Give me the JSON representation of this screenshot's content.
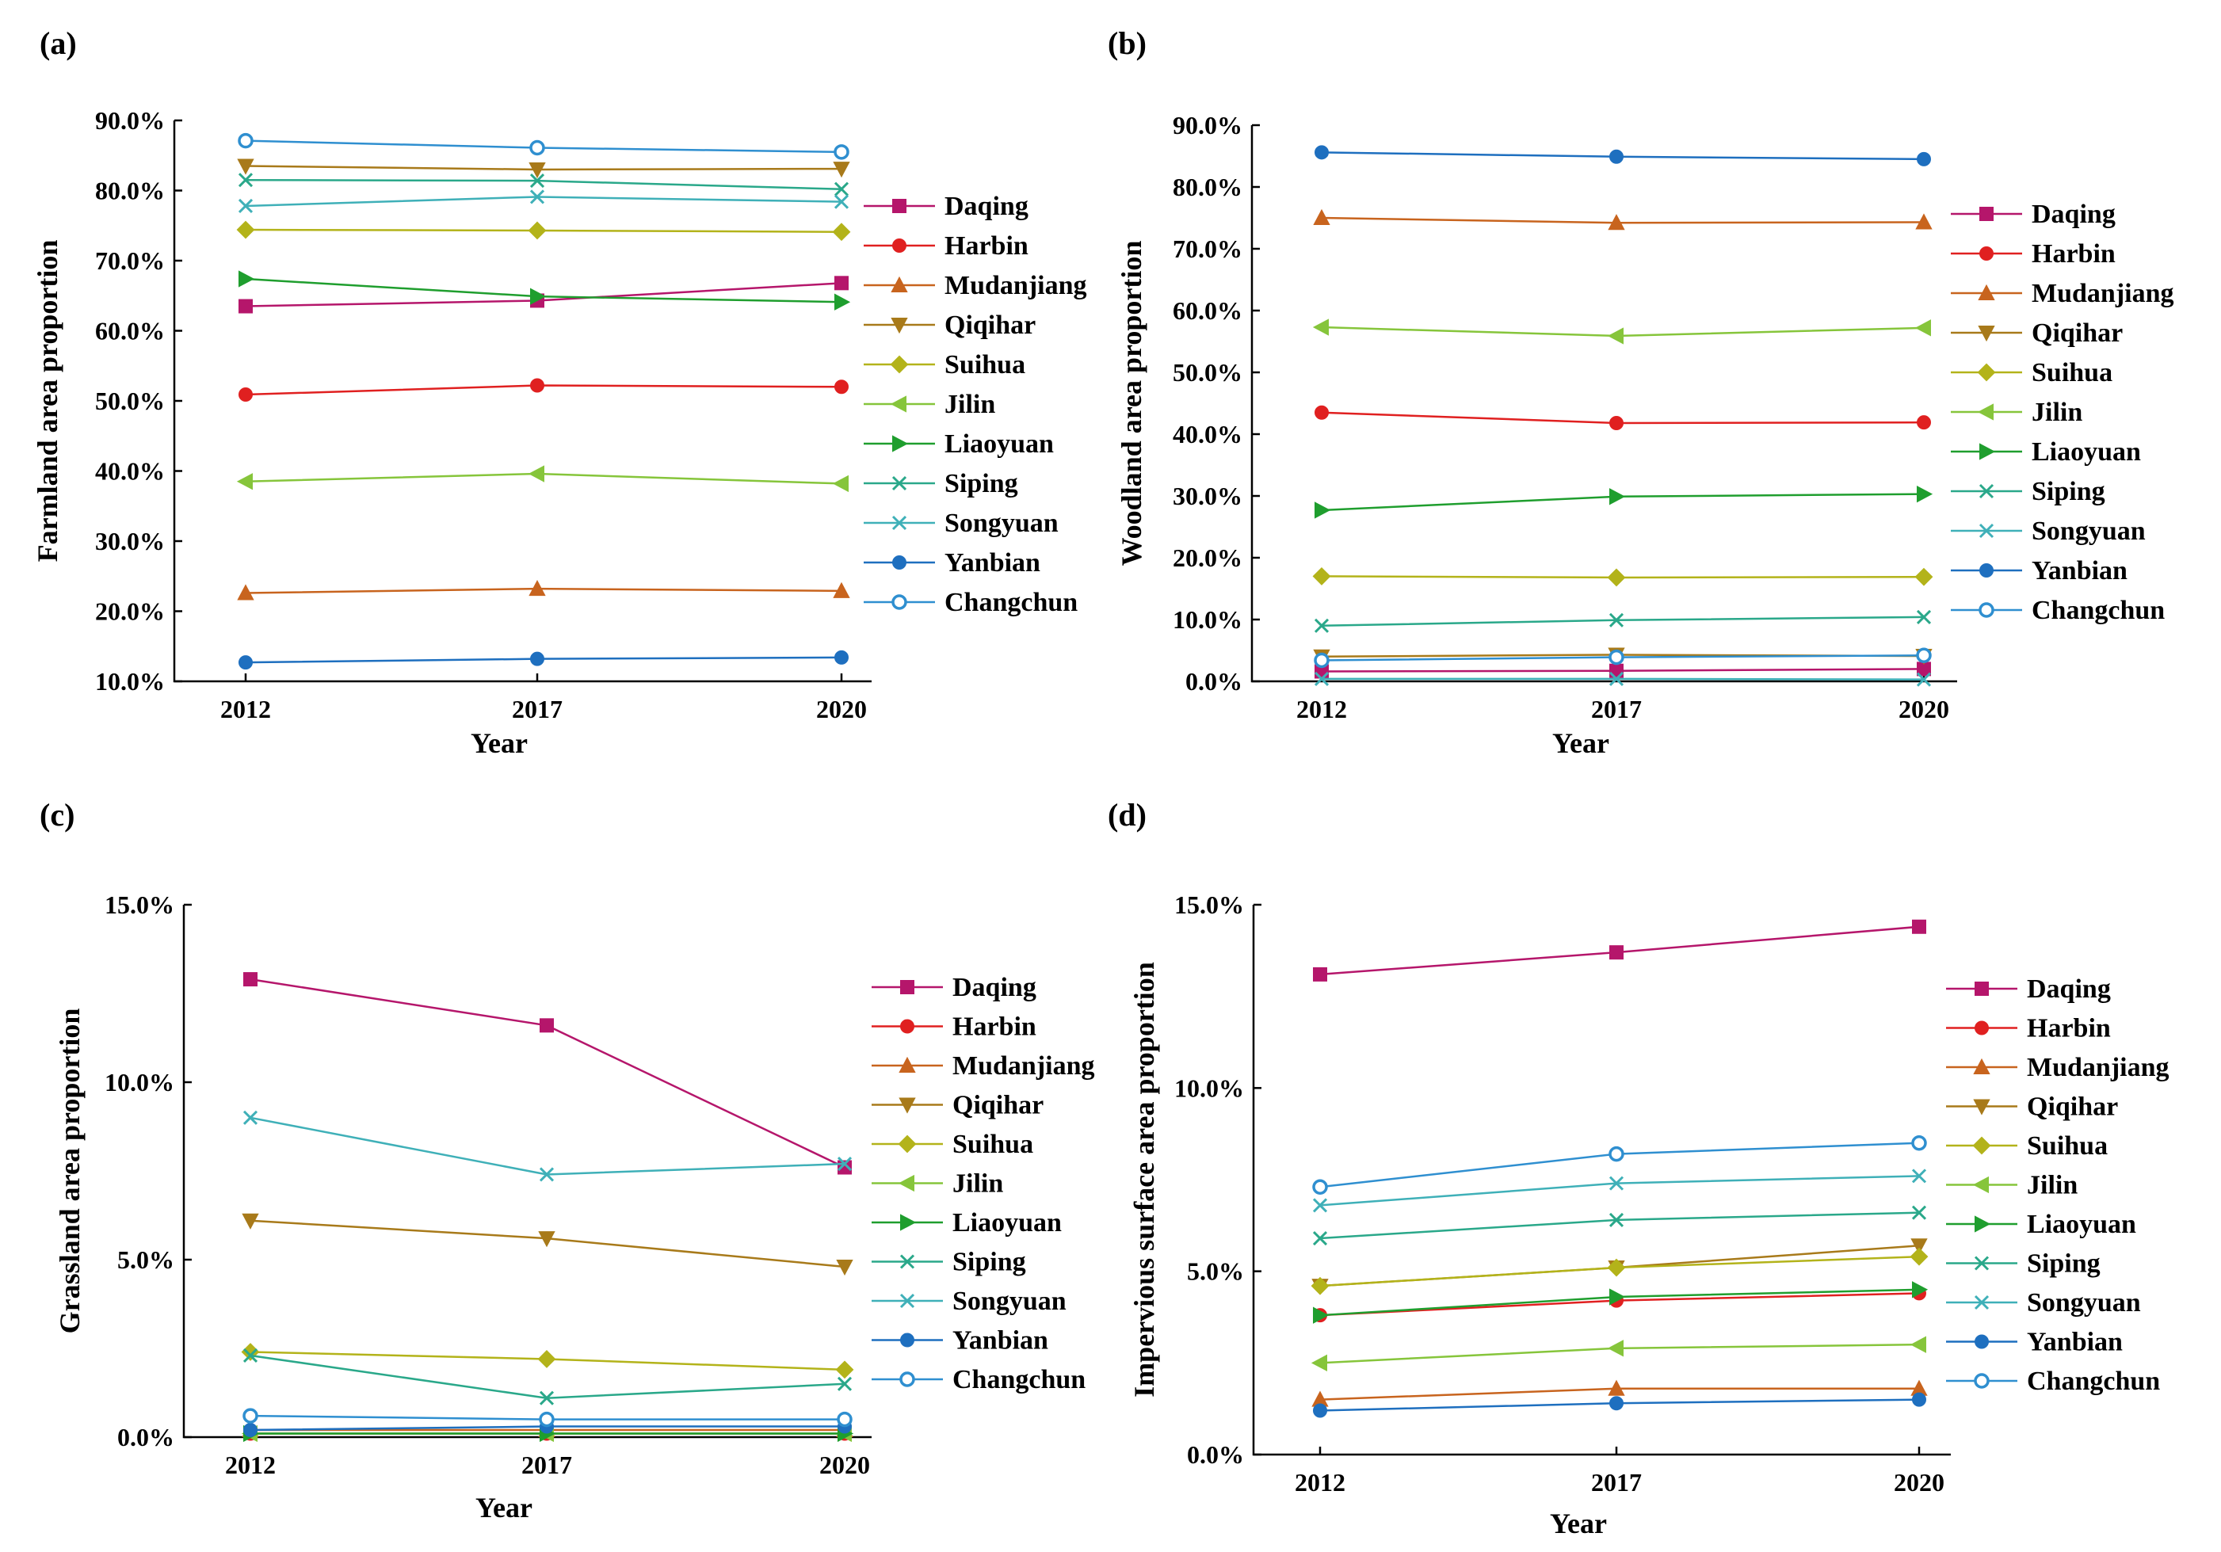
{
  "colors": {
    "Daqing": "#b5166b",
    "Harbin": "#e02020",
    "Mudanjiang": "#c8641e",
    "Qiqihar": "#a87a1a",
    "Suihua": "#b3b31a",
    "Jilin": "#86c53b",
    "Liaoyuan": "#1f9e2e",
    "Siping": "#2aa88a",
    "Songyuan": "#3fb0b8",
    "Yanbian": "#1e6fbf",
    "Changchun": "#2f8fd0"
  },
  "markers": {
    "Daqing": "square",
    "Harbin": "circle",
    "Mudanjiang": "triangle-up",
    "Qiqihar": "triangle-down",
    "Suihua": "diamond",
    "Jilin": "triangle-left",
    "Liaoyuan": "triangle-right",
    "Siping": "x",
    "Songyuan": "x",
    "Yanbian": "circle",
    "Changchun": "circle-hollow"
  },
  "chart_data": [
    {
      "panel": "(a)",
      "type": "line",
      "xlabel": "Year",
      "ylabel": "Farmland area proportion",
      "categories": [
        "2012",
        "2017",
        "2020"
      ],
      "ylim": [
        10,
        90
      ],
      "yticks": [
        10,
        20,
        30,
        40,
        50,
        60,
        70,
        80,
        90
      ],
      "ytick_labels": [
        "10.0%",
        "20.0%",
        "30.0%",
        "40.0%",
        "50.0%",
        "60.0%",
        "70.0%",
        "80.0%",
        "90.0%"
      ],
      "legend_position": "right",
      "series": [
        {
          "name": "Daqing",
          "values": [
            63.5,
            64.3,
            66.8
          ]
        },
        {
          "name": "Harbin",
          "values": [
            50.9,
            52.2,
            52.0
          ]
        },
        {
          "name": "Mudanjiang",
          "values": [
            22.6,
            23.2,
            22.9
          ]
        },
        {
          "name": "Qiqihar",
          "values": [
            83.5,
            83.0,
            83.1
          ]
        },
        {
          "name": "Suihua",
          "values": [
            74.4,
            74.3,
            74.1
          ]
        },
        {
          "name": "Jilin",
          "values": [
            38.5,
            39.6,
            38.2
          ]
        },
        {
          "name": "Liaoyuan",
          "values": [
            67.4,
            64.9,
            64.1
          ]
        },
        {
          "name": "Siping",
          "values": [
            81.5,
            81.4,
            80.2
          ]
        },
        {
          "name": "Songyuan",
          "values": [
            77.8,
            79.1,
            78.4
          ]
        },
        {
          "name": "Yanbian",
          "values": [
            12.7,
            13.2,
            13.4
          ]
        },
        {
          "name": "Changchun",
          "values": [
            87.1,
            86.1,
            85.5
          ]
        }
      ]
    },
    {
      "panel": "(b)",
      "type": "line",
      "xlabel": "Year",
      "ylabel": "Woodland area proportion",
      "categories": [
        "2012",
        "2017",
        "2020"
      ],
      "ylim": [
        0,
        90
      ],
      "yticks": [
        0,
        10,
        20,
        30,
        40,
        50,
        60,
        70,
        80,
        90
      ],
      "ytick_labels": [
        "0.0%",
        "10.0%",
        "20.0%",
        "30.0%",
        "40.0%",
        "50.0%",
        "60.0%",
        "70.0%",
        "80.0%",
        "90.0%"
      ],
      "legend_position": "right",
      "series": [
        {
          "name": "Daqing",
          "values": [
            1.6,
            1.7,
            2.0
          ]
        },
        {
          "name": "Harbin",
          "values": [
            43.5,
            41.8,
            41.9
          ]
        },
        {
          "name": "Mudanjiang",
          "values": [
            75.0,
            74.2,
            74.3
          ]
        },
        {
          "name": "Qiqihar",
          "values": [
            4.0,
            4.3,
            4.1
          ]
        },
        {
          "name": "Suihua",
          "values": [
            17.0,
            16.8,
            16.9
          ]
        },
        {
          "name": "Jilin",
          "values": [
            57.3,
            55.9,
            57.2
          ]
        },
        {
          "name": "Liaoyuan",
          "values": [
            27.7,
            29.9,
            30.3
          ]
        },
        {
          "name": "Siping",
          "values": [
            9.0,
            9.9,
            10.4
          ]
        },
        {
          "name": "Songyuan",
          "values": [
            0.4,
            0.4,
            0.3
          ]
        },
        {
          "name": "Yanbian",
          "values": [
            85.6,
            84.9,
            84.5
          ]
        },
        {
          "name": "Changchun",
          "values": [
            3.4,
            3.9,
            4.2
          ]
        }
      ]
    },
    {
      "panel": "(c)",
      "type": "line",
      "xlabel": "Year",
      "ylabel": "Grassland area proportion",
      "categories": [
        "2012",
        "2017",
        "2020"
      ],
      "ylim": [
        0,
        15
      ],
      "yticks": [
        0,
        5,
        10,
        15
      ],
      "ytick_labels": [
        "0.0%",
        "5.0%",
        "10.0%",
        "15.0%"
      ],
      "legend_position": "right",
      "series": [
        {
          "name": "Daqing",
          "values": [
            12.9,
            11.6,
            7.6
          ]
        },
        {
          "name": "Harbin",
          "values": [
            0.1,
            0.1,
            0.1
          ]
        },
        {
          "name": "Mudanjiang",
          "values": [
            0.2,
            0.2,
            0.2
          ]
        },
        {
          "name": "Qiqihar",
          "values": [
            6.1,
            5.6,
            4.8
          ]
        },
        {
          "name": "Suihua",
          "values": [
            2.4,
            2.2,
            1.9
          ]
        },
        {
          "name": "Jilin",
          "values": [
            0.1,
            0.1,
            0.1
          ]
        },
        {
          "name": "Liaoyuan",
          "values": [
            0.1,
            0.1,
            0.1
          ]
        },
        {
          "name": "Siping",
          "values": [
            2.3,
            1.1,
            1.5
          ]
        },
        {
          "name": "Songyuan",
          "values": [
            9.0,
            7.4,
            7.7
          ]
        },
        {
          "name": "Yanbian",
          "values": [
            0.2,
            0.3,
            0.3
          ]
        },
        {
          "name": "Changchun",
          "values": [
            0.6,
            0.5,
            0.5
          ]
        }
      ]
    },
    {
      "panel": "(d)",
      "type": "line",
      "xlabel": "Year",
      "ylabel": "Impervious surface area proportion",
      "categories": [
        "2012",
        "2017",
        "2020"
      ],
      "ylim": [
        0,
        15
      ],
      "yticks": [
        0,
        5,
        10,
        15
      ],
      "ytick_labels": [
        "0.0%",
        "5.0%",
        "10.0%",
        "15.0%"
      ],
      "legend_position": "right",
      "series": [
        {
          "name": "Daqing",
          "values": [
            13.1,
            13.7,
            14.4
          ]
        },
        {
          "name": "Harbin",
          "values": [
            3.8,
            4.2,
            4.4
          ]
        },
        {
          "name": "Mudanjiang",
          "values": [
            1.5,
            1.8,
            1.8
          ]
        },
        {
          "name": "Qiqihar",
          "values": [
            4.6,
            5.1,
            5.7
          ]
        },
        {
          "name": "Suihua",
          "values": [
            4.6,
            5.1,
            5.4
          ]
        },
        {
          "name": "Jilin",
          "values": [
            2.5,
            2.9,
            3.0
          ]
        },
        {
          "name": "Liaoyuan",
          "values": [
            3.8,
            4.3,
            4.5
          ]
        },
        {
          "name": "Siping",
          "values": [
            5.9,
            6.4,
            6.6
          ]
        },
        {
          "name": "Songyuan",
          "values": [
            6.8,
            7.4,
            7.6
          ]
        },
        {
          "name": "Yanbian",
          "values": [
            1.2,
            1.4,
            1.5
          ]
        },
        {
          "name": "Changchun",
          "values": [
            7.3,
            8.2,
            8.5
          ]
        }
      ]
    }
  ]
}
